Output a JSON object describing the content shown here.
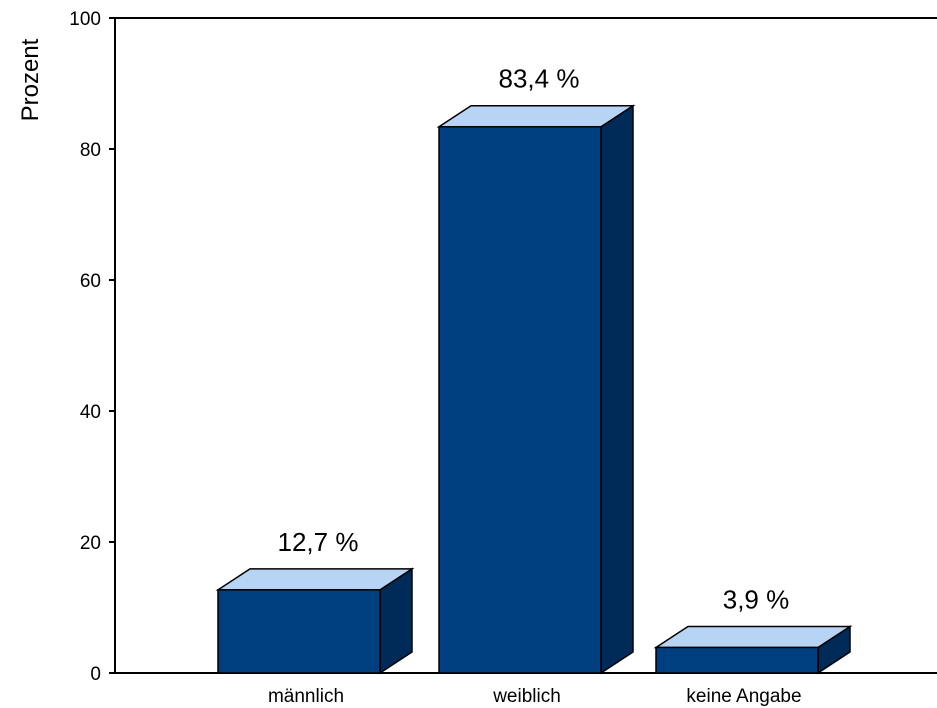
{
  "chart_data": {
    "type": "bar",
    "title": "",
    "xlabel": "",
    "ylabel": "Prozent",
    "ylim": [
      0,
      100
    ],
    "yticks": [
      0,
      20,
      40,
      60,
      80,
      100
    ],
    "categories": [
      "männlich",
      "weiblich",
      "keine Angabe"
    ],
    "values": [
      12.7,
      83.4,
      3.9
    ],
    "data_labels": [
      "12,7 %",
      "83,4 %",
      "3,9 %"
    ],
    "grid": false,
    "legend": "none",
    "style": "3d",
    "colors": {
      "front": "#003F7F",
      "top": "#B8D4F5",
      "side": "#002B58",
      "outline": "#000000"
    }
  }
}
